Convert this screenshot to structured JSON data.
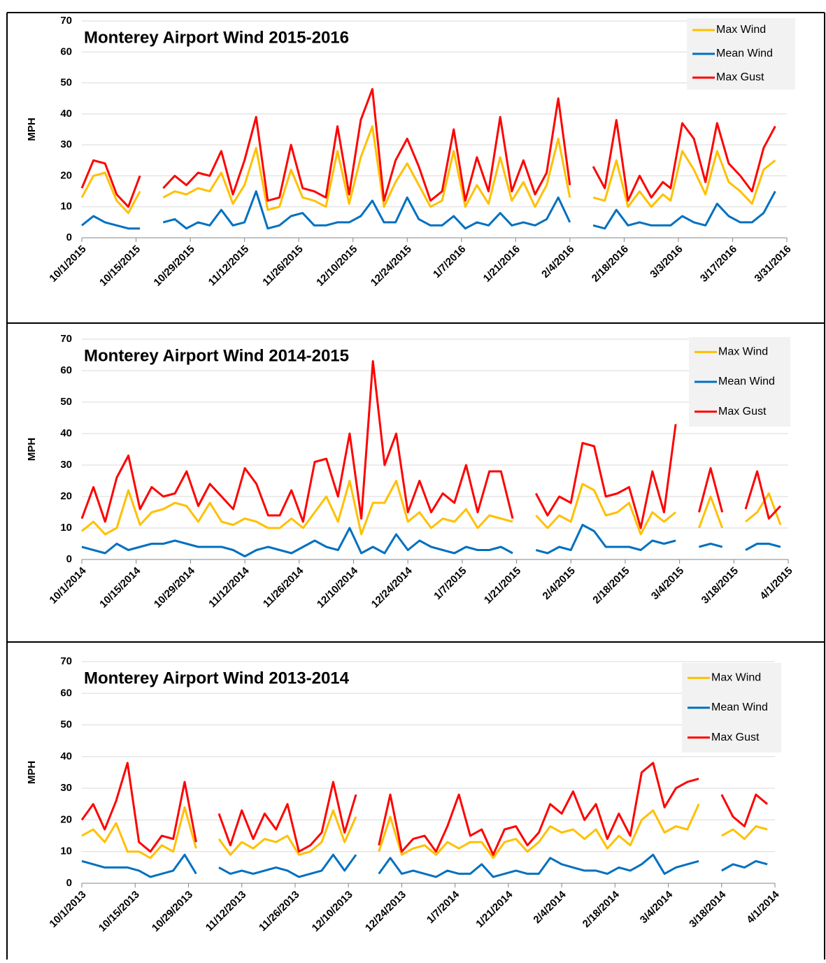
{
  "chart_data": [
    {
      "type": "line",
      "title": "Monterey Airport Wind 2015-2016",
      "y_label": "MPH",
      "grid": true,
      "legend": "upper right",
      "xlim": [
        "10/1/2015",
        "3/31/2016"
      ],
      "xticks": [
        "10/1/2015",
        "10/15/2015",
        "10/29/2015",
        "11/12/2015",
        "11/26/2015",
        "12/10/2015",
        "12/24/2015",
        "1/7/2016",
        "1/21/2016",
        "2/4/2016",
        "2/18/2016",
        "3/3/2016",
        "3/17/2016",
        "3/31/2016"
      ],
      "ylim": [
        0,
        70
      ],
      "yticks": [
        0,
        10,
        20,
        30,
        40,
        50,
        60,
        70
      ],
      "x": [
        "10/1/2015",
        "10/4/2015",
        "10/7/2015",
        "10/10/2015",
        "10/13/2015",
        "10/16/2015",
        "10/19/2015",
        "10/22/2015",
        "10/25/2015",
        "10/28/2015",
        "10/31/2015",
        "11/3/2015",
        "11/6/2015",
        "11/9/2015",
        "11/12/2015",
        "11/15/2015",
        "11/18/2015",
        "11/21/2015",
        "11/24/2015",
        "11/27/2015",
        "11/30/2015",
        "12/3/2015",
        "12/6/2015",
        "12/9/2015",
        "12/12/2015",
        "12/15/2015",
        "12/18/2015",
        "12/21/2015",
        "12/24/2015",
        "12/27/2015",
        "12/30/2015",
        "1/2/2016",
        "1/5/2016",
        "1/8/2016",
        "1/11/2016",
        "1/14/2016",
        "1/17/2016",
        "1/20/2016",
        "1/23/2016",
        "1/26/2016",
        "1/29/2016",
        "2/1/2016",
        "2/4/2016",
        "2/7/2016",
        "2/10/2016",
        "2/13/2016",
        "2/16/2016",
        "2/19/2016",
        "2/22/2016",
        "2/25/2016",
        "2/28/2016",
        "3/1/2016",
        "3/4/2016",
        "3/7/2016",
        "3/10/2016",
        "3/13/2016",
        "3/16/2016",
        "3/19/2016",
        "3/22/2016",
        "3/25/2016",
        "3/28/2016"
      ],
      "series": [
        {
          "name": "Max Wind",
          "color": "#ffc000",
          "values": [
            13,
            20,
            21,
            12,
            8,
            15,
            null,
            13,
            15,
            14,
            16,
            15,
            21,
            11,
            17,
            29,
            9,
            10,
            22,
            13,
            12,
            10,
            28,
            11,
            26,
            36,
            10,
            18,
            24,
            17,
            10,
            12,
            28,
            10,
            17,
            11,
            26,
            12,
            18,
            10,
            17,
            32,
            13,
            null,
            13,
            12,
            25,
            10,
            15,
            10,
            14,
            12,
            28,
            22,
            14,
            28,
            18,
            15,
            11,
            22,
            25
          ]
        },
        {
          "name": "Mean Wind",
          "color": "#0070c0",
          "values": [
            4,
            7,
            5,
            4,
            3,
            3,
            null,
            5,
            6,
            3,
            5,
            4,
            9,
            4,
            5,
            15,
            3,
            4,
            7,
            8,
            4,
            4,
            5,
            5,
            7,
            12,
            5,
            5,
            13,
            6,
            4,
            4,
            7,
            3,
            5,
            4,
            8,
            4,
            5,
            4,
            6,
            13,
            5,
            null,
            4,
            3,
            9,
            4,
            5,
            4,
            4,
            4,
            7,
            5,
            4,
            11,
            7,
            5,
            5,
            8,
            15
          ]
        },
        {
          "name": "Max Gust",
          "color": "#ff0000",
          "values": [
            16,
            25,
            24,
            14,
            10,
            20,
            null,
            16,
            20,
            17,
            21,
            20,
            28,
            14,
            25,
            39,
            12,
            13,
            30,
            16,
            15,
            13,
            36,
            14,
            38,
            48,
            12,
            25,
            32,
            23,
            12,
            15,
            35,
            12,
            26,
            15,
            39,
            15,
            25,
            14,
            21,
            45,
            17,
            null,
            23,
            16,
            38,
            12,
            20,
            13,
            18,
            16,
            37,
            32,
            18,
            37,
            24,
            20,
            15,
            29,
            36
          ]
        }
      ]
    },
    {
      "type": "line",
      "title": "Monterey Airport Wind 2014-2015",
      "y_label": "MPH",
      "grid": true,
      "legend": "upper right",
      "xlim": [
        "10/1/2014",
        "4/1/2015"
      ],
      "xticks": [
        "10/1/2014",
        "10/15/2014",
        "10/29/2014",
        "11/12/2014",
        "11/26/2014",
        "12/10/2014",
        "12/24/2014",
        "1/7/2015",
        "1/21/2015",
        "2/4/2015",
        "2/18/2015",
        "3/4/2015",
        "3/18/2015",
        "4/1/2015"
      ],
      "ylim": [
        0,
        70
      ],
      "yticks": [
        0,
        10,
        20,
        30,
        40,
        50,
        60,
        70
      ],
      "x": [
        "10/1/2014",
        "10/4/2014",
        "10/7/2014",
        "10/10/2014",
        "10/13/2014",
        "10/16/2014",
        "10/19/2014",
        "10/22/2014",
        "10/25/2014",
        "10/28/2014",
        "10/31/2014",
        "11/3/2014",
        "11/6/2014",
        "11/9/2014",
        "11/12/2014",
        "11/15/2014",
        "11/18/2014",
        "11/21/2014",
        "11/24/2014",
        "11/27/2014",
        "11/30/2014",
        "12/3/2014",
        "12/6/2014",
        "12/9/2014",
        "12/12/2014",
        "12/15/2014",
        "12/18/2014",
        "12/21/2014",
        "12/24/2014",
        "12/27/2014",
        "12/30/2014",
        "1/2/2015",
        "1/5/2015",
        "1/8/2015",
        "1/11/2015",
        "1/14/2015",
        "1/17/2015",
        "1/20/2015",
        "1/23/2015",
        "1/26/2015",
        "1/29/2015",
        "2/1/2015",
        "2/4/2015",
        "2/7/2015",
        "2/10/2015",
        "2/13/2015",
        "2/16/2015",
        "2/19/2015",
        "2/22/2015",
        "2/25/2015",
        "2/28/2015",
        "3/3/2015",
        "3/6/2015",
        "3/9/2015",
        "3/12/2015",
        "3/15/2015",
        "3/18/2015",
        "3/21/2015",
        "3/24/2015",
        "3/27/2015",
        "3/30/2015"
      ],
      "series": [
        {
          "name": "Max Wind",
          "color": "#ffc000",
          "values": [
            9,
            12,
            8,
            10,
            22,
            11,
            15,
            16,
            18,
            17,
            12,
            18,
            12,
            11,
            13,
            12,
            10,
            10,
            13,
            10,
            15,
            20,
            12,
            25,
            8,
            18,
            18,
            25,
            12,
            15,
            10,
            13,
            12,
            16,
            10,
            14,
            13,
            12,
            null,
            14,
            10,
            14,
            12,
            24,
            22,
            14,
            15,
            18,
            8,
            15,
            12,
            15,
            null,
            10,
            20,
            10,
            null,
            12,
            15,
            21,
            11
          ]
        },
        {
          "name": "Mean Wind",
          "color": "#0070c0",
          "values": [
            4,
            3,
            2,
            5,
            3,
            4,
            5,
            5,
            6,
            5,
            4,
            4,
            4,
            3,
            1,
            3,
            4,
            3,
            2,
            4,
            6,
            4,
            3,
            10,
            2,
            4,
            2,
            8,
            3,
            6,
            4,
            3,
            2,
            4,
            3,
            3,
            4,
            2,
            null,
            3,
            2,
            4,
            3,
            11,
            9,
            4,
            4,
            4,
            3,
            6,
            5,
            6,
            null,
            4,
            5,
            4,
            null,
            3,
            5,
            5,
            4
          ]
        },
        {
          "name": "Max Gust",
          "color": "#ff0000",
          "values": [
            13,
            23,
            12,
            26,
            33,
            16,
            23,
            20,
            21,
            28,
            17,
            24,
            20,
            16,
            29,
            24,
            14,
            14,
            22,
            12,
            31,
            32,
            20,
            40,
            13,
            63,
            30,
            40,
            15,
            25,
            15,
            21,
            18,
            30,
            15,
            28,
            28,
            13,
            null,
            21,
            14,
            20,
            18,
            37,
            36,
            20,
            21,
            23,
            10,
            28,
            15,
            43,
            null,
            15,
            29,
            15,
            null,
            16,
            28,
            13,
            17
          ]
        }
      ]
    },
    {
      "type": "line",
      "title": "Monterey Airport Wind 2013-2014",
      "y_label": "MPH",
      "grid": true,
      "legend": "upper right",
      "xlim": [
        "10/1/2013",
        "4/1/2014"
      ],
      "xticks": [
        "10/1/2013",
        "10/15/2013",
        "10/29/2013",
        "11/12/2013",
        "11/26/2013",
        "12/10/2013",
        "12/24/2013",
        "1/7/2014",
        "1/21/2014",
        "2/4/2014",
        "2/18/2014",
        "3/4/2014",
        "3/18/2014",
        "4/1/2014"
      ],
      "ylim": [
        0,
        70
      ],
      "yticks": [
        0,
        10,
        20,
        30,
        40,
        50,
        60,
        70
      ],
      "x": [
        "10/1/2013",
        "10/4/2013",
        "10/7/2013",
        "10/10/2013",
        "10/13/2013",
        "10/16/2013",
        "10/19/2013",
        "10/22/2013",
        "10/25/2013",
        "10/28/2013",
        "10/31/2013",
        "11/3/2013",
        "11/6/2013",
        "11/9/2013",
        "11/12/2013",
        "11/15/2013",
        "11/18/2013",
        "11/21/2013",
        "11/24/2013",
        "11/27/2013",
        "11/30/2013",
        "12/3/2013",
        "12/6/2013",
        "12/9/2013",
        "12/12/2013",
        "12/15/2013",
        "12/18/2013",
        "12/21/2013",
        "12/24/2013",
        "12/27/2013",
        "12/30/2013",
        "1/2/2014",
        "1/5/2014",
        "1/8/2014",
        "1/11/2014",
        "1/14/2014",
        "1/17/2014",
        "1/20/2014",
        "1/23/2014",
        "1/26/2014",
        "1/29/2014",
        "2/1/2014",
        "2/4/2014",
        "2/7/2014",
        "2/10/2014",
        "2/13/2014",
        "2/16/2014",
        "2/19/2014",
        "2/22/2014",
        "2/25/2014",
        "2/28/2014",
        "3/3/2014",
        "3/6/2014",
        "3/9/2014",
        "3/12/2014",
        "3/15/2014",
        "3/18/2014",
        "3/21/2014",
        "3/24/2014",
        "3/27/2014",
        "3/30/2014"
      ],
      "series": [
        {
          "name": "Max Wind",
          "color": "#ffc000",
          "values": [
            15,
            17,
            13,
            19,
            10,
            10,
            8,
            12,
            10,
            24,
            11,
            null,
            14,
            9,
            13,
            11,
            14,
            13,
            15,
            9,
            10,
            13,
            23,
            13,
            21,
            null,
            10,
            21,
            9,
            11,
            12,
            9,
            13,
            11,
            13,
            13,
            8,
            13,
            14,
            10,
            13,
            18,
            16,
            17,
            14,
            17,
            11,
            15,
            12,
            20,
            23,
            16,
            18,
            17,
            25,
            null,
            15,
            17,
            14,
            18,
            17
          ]
        },
        {
          "name": "Mean Wind",
          "color": "#0070c0",
          "values": [
            7,
            6,
            5,
            5,
            5,
            4,
            2,
            3,
            4,
            9,
            3,
            null,
            5,
            3,
            4,
            3,
            4,
            5,
            4,
            2,
            3,
            4,
            9,
            4,
            9,
            null,
            3,
            8,
            3,
            4,
            3,
            2,
            4,
            3,
            3,
            6,
            2,
            3,
            4,
            3,
            3,
            8,
            6,
            5,
            4,
            4,
            3,
            5,
            4,
            6,
            9,
            3,
            5,
            6,
            7,
            null,
            4,
            6,
            5,
            7,
            6
          ]
        },
        {
          "name": "Max Gust",
          "color": "#ff0000",
          "values": [
            20,
            25,
            17,
            26,
            38,
            13,
            10,
            15,
            14,
            32,
            13,
            null,
            22,
            12,
            23,
            14,
            22,
            17,
            25,
            10,
            12,
            16,
            32,
            16,
            28,
            null,
            12,
            28,
            10,
            14,
            15,
            10,
            18,
            28,
            15,
            17,
            9,
            17,
            18,
            12,
            16,
            25,
            22,
            29,
            20,
            25,
            14,
            22,
            15,
            35,
            38,
            24,
            30,
            32,
            33,
            null,
            28,
            21,
            18,
            28,
            25
          ]
        }
      ]
    }
  ]
}
